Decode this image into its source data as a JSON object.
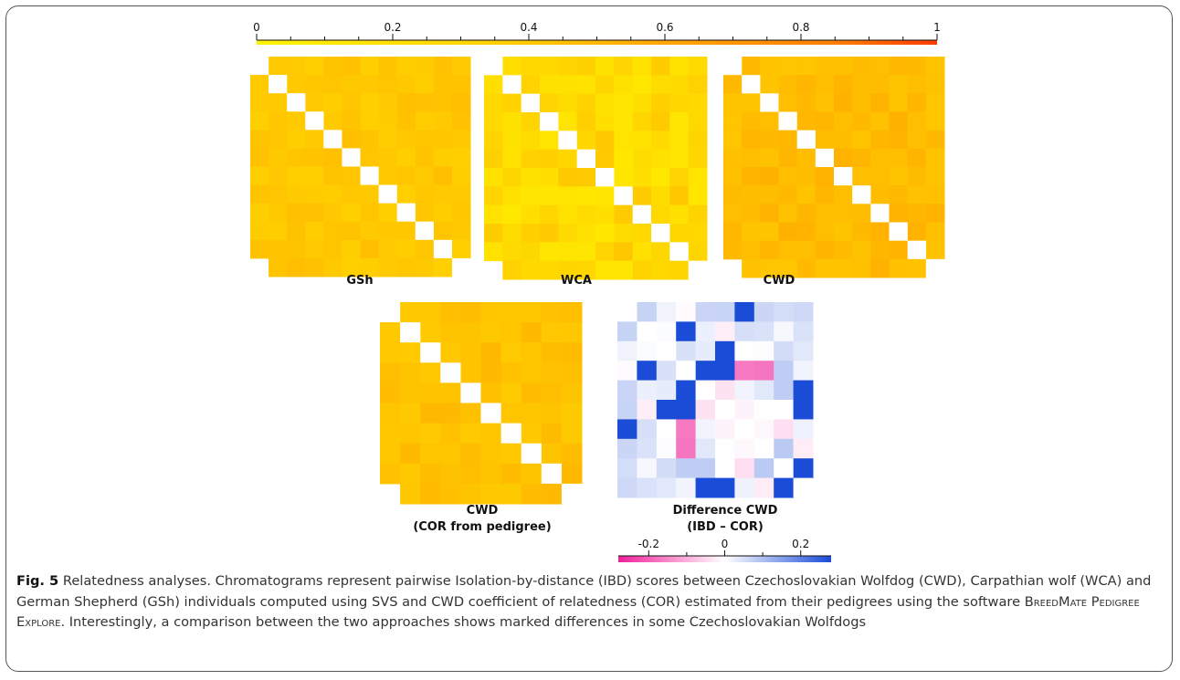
{
  "figure": {
    "colorbar_top": {
      "ticks": [
        "0",
        "0.2",
        "0.4",
        "0.6",
        "0.8",
        "1"
      ],
      "tick_values": [
        0,
        0.2,
        0.4,
        0.6,
        0.8,
        1
      ]
    },
    "colorbar_bottom": {
      "ticks": [
        "-0.2",
        "0",
        "0.2"
      ],
      "tick_values": [
        -0.2,
        0,
        0.2
      ],
      "range": [
        -0.28,
        0.28
      ]
    },
    "panels": [
      {
        "id": "gsh",
        "label": "GSh",
        "n": 12,
        "base": 0.4,
        "var": 0.05,
        "seed": 11,
        "color_mode": "relatedness"
      },
      {
        "id": "wca",
        "label": "WCA",
        "n": 12,
        "base": 0.25,
        "var": 0.15,
        "seed": 23,
        "color_mode": "relatedness"
      },
      {
        "id": "cwd",
        "label": "CWD",
        "n": 12,
        "base": 0.47,
        "var": 0.06,
        "seed": 37,
        "color_mode": "relatedness"
      },
      {
        "id": "cwd-cor",
        "label": "CWD",
        "label2": "(COR from pedigree)",
        "n": 10,
        "base": 0.44,
        "var": 0.06,
        "seed": 53,
        "color_mode": "relatedness"
      },
      {
        "id": "diff",
        "label": "Difference CWD",
        "label2": "(IBD – COR)",
        "n": 10,
        "base": 0.03,
        "var": 0.08,
        "seed": 71,
        "color_mode": "difference"
      }
    ]
  },
  "caption": {
    "fig_label": "Fig. 5",
    "part1": " Relatedness analyses. Chromatograms represent pairwise Isolation-by-distance (IBD) scores between Czechoslovakian Wolfdog (CWD), Carpathian wolf (WCA) and German Shepherd (GSh) individuals computed using SVS and CWD coefficient of relatedness (COR) estimated from their pedigrees using the software ",
    "software": "BreedMate Pedigree Explore",
    "part2": ". Interestingly, a comparison between the two approaches shows marked differences in some Czechoslovakian Wolfdogs"
  }
}
